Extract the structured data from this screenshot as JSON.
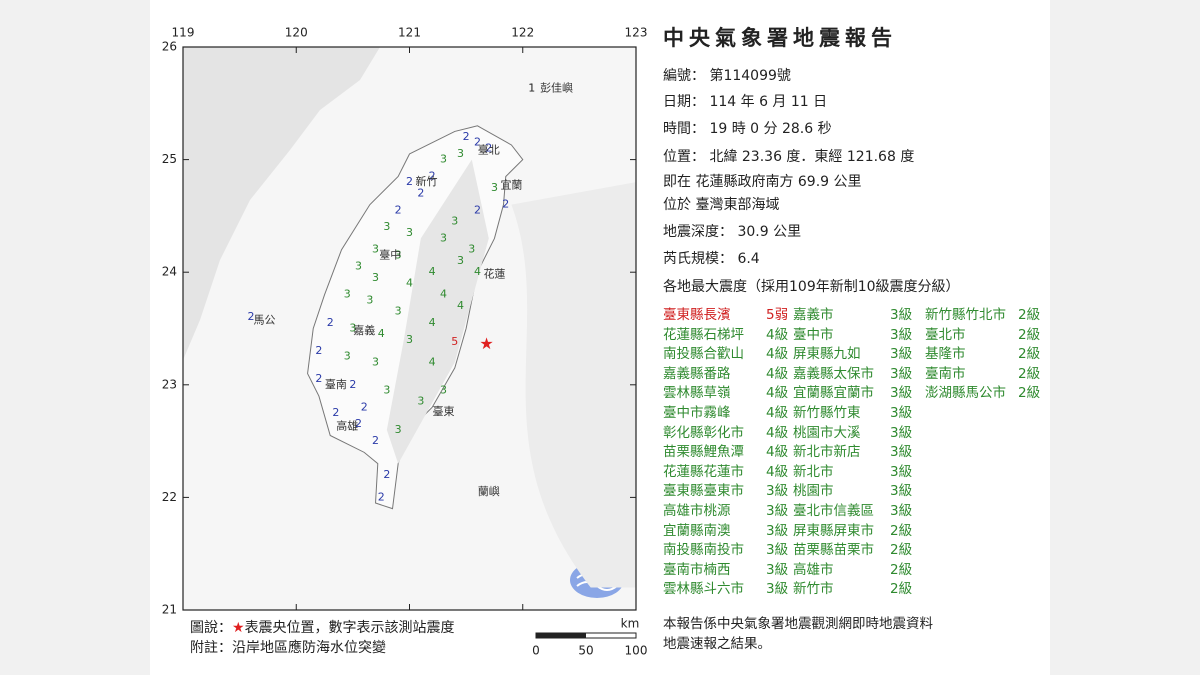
{
  "report": {
    "title": "中央氣象署地震報告",
    "fields": [
      "編號： 第114099號",
      "日期： 114 年 6 月 11 日",
      "時間： 19 時 0 分 28.6 秒",
      "位置： 北緯 23.36 度．東經 121.68 度",
      "即在 花蓮縣政府南方 69.9 公里",
      "位於 臺灣東部海域",
      "地震深度： 30.9 公里",
      "芮氏規模： 6.4"
    ],
    "intensity_header": "各地最大震度（採用109年新制10級震度分級）",
    "intensity_columns": [
      [
        [
          "臺東縣長濱",
          "5弱"
        ],
        [
          "花蓮縣石梯坪",
          "4級"
        ],
        [
          "南投縣合歡山",
          "4級"
        ],
        [
          "嘉義縣番路",
          "4級"
        ],
        [
          "雲林縣草嶺",
          "4級"
        ],
        [
          "臺中市霧峰",
          "4級"
        ],
        [
          "彰化縣彰化市",
          "4級"
        ],
        [
          "苗栗縣鯉魚潭",
          "4級"
        ],
        [
          "花蓮縣花蓮市",
          "4級"
        ],
        [
          "臺東縣臺東市",
          "3級"
        ],
        [
          "高雄市桃源",
          "3級"
        ],
        [
          "宜蘭縣南澳",
          "3級"
        ],
        [
          "南投縣南投市",
          "3級"
        ],
        [
          "臺南市楠西",
          "3級"
        ],
        [
          "雲林縣斗六市",
          "3級"
        ]
      ],
      [
        [
          "嘉義市",
          "3級"
        ],
        [
          "臺中市",
          "3級"
        ],
        [
          "屏東縣九如",
          "3級"
        ],
        [
          "嘉義縣太保市",
          "3級"
        ],
        [
          "宜蘭縣宜蘭市",
          "3級"
        ],
        [
          "新竹縣竹東",
          "3級"
        ],
        [
          "桃園市大溪",
          "3級"
        ],
        [
          "新北市新店",
          "3級"
        ],
        [
          "新北市",
          "3級"
        ],
        [
          "桃園市",
          "3級"
        ],
        [
          "臺北市信義區",
          "3級"
        ],
        [
          "屏東縣屏東市",
          "2級"
        ],
        [
          "苗栗縣苗栗市",
          "2級"
        ],
        [
          "高雄市",
          "2級"
        ],
        [
          "新竹市",
          "2級"
        ]
      ],
      [
        [
          "新竹縣竹北市",
          "2級"
        ],
        [
          "臺北市",
          "2級"
        ],
        [
          "基隆市",
          "2級"
        ],
        [
          "臺南市",
          "2級"
        ],
        [
          "澎湖縣馬公市",
          "2級"
        ]
      ]
    ],
    "footnote": [
      "本報告係中央氣象署地震觀測網即時地震資料",
      "地震速報之結果。"
    ]
  },
  "map": {
    "xlim": [
      119,
      123
    ],
    "ylim": [
      21,
      26
    ],
    "xticks": [
      119,
      120,
      121,
      122,
      123
    ],
    "yticks": [
      21,
      22,
      23,
      24,
      25,
      26
    ],
    "epicenter": {
      "lon": 121.68,
      "lat": 23.36,
      "color": "#e02020"
    },
    "intensity_colors": {
      "1": "#222222",
      "2": "#2a3aa8",
      "3": "#2f8a2f",
      "4": "#2f8a2f",
      "5": "#d02020"
    },
    "stations": [
      [
        122.08,
        25.63,
        1
      ],
      [
        121.5,
        25.2,
        2
      ],
      [
        121.6,
        25.15,
        2
      ],
      [
        121.45,
        25.05,
        3
      ],
      [
        121.7,
        25.1,
        2
      ],
      [
        121.3,
        25.0,
        3
      ],
      [
        121.2,
        24.85,
        2
      ],
      [
        121.0,
        24.8,
        2
      ],
      [
        121.1,
        24.7,
        2
      ],
      [
        121.75,
        24.75,
        3
      ],
      [
        121.85,
        24.6,
        2
      ],
      [
        121.6,
        24.55,
        2
      ],
      [
        121.4,
        24.45,
        3
      ],
      [
        120.9,
        24.55,
        2
      ],
      [
        120.8,
        24.4,
        3
      ],
      [
        121.0,
        24.35,
        3
      ],
      [
        121.3,
        24.3,
        3
      ],
      [
        121.55,
        24.2,
        3
      ],
      [
        121.6,
        24.0,
        4
      ],
      [
        121.45,
        24.1,
        3
      ],
      [
        120.7,
        24.2,
        3
      ],
      [
        120.9,
        24.15,
        3
      ],
      [
        121.2,
        24.0,
        4
      ],
      [
        120.55,
        24.05,
        3
      ],
      [
        120.7,
        23.95,
        3
      ],
      [
        121.0,
        23.9,
        4
      ],
      [
        121.3,
        23.8,
        4
      ],
      [
        121.45,
        23.7,
        4
      ],
      [
        120.45,
        23.8,
        3
      ],
      [
        120.65,
        23.75,
        3
      ],
      [
        120.9,
        23.65,
        3
      ],
      [
        121.2,
        23.55,
        4
      ],
      [
        121.4,
        23.38,
        5
      ],
      [
        120.3,
        23.55,
        2
      ],
      [
        120.5,
        23.5,
        3
      ],
      [
        120.75,
        23.45,
        4
      ],
      [
        121.0,
        23.4,
        3
      ],
      [
        120.2,
        23.3,
        2
      ],
      [
        120.45,
        23.25,
        3
      ],
      [
        120.7,
        23.2,
        3
      ],
      [
        121.2,
        23.2,
        4
      ],
      [
        120.2,
        23.05,
        2
      ],
      [
        120.5,
        23.0,
        2
      ],
      [
        120.8,
        22.95,
        3
      ],
      [
        121.1,
        22.85,
        3
      ],
      [
        121.3,
        22.95,
        3
      ],
      [
        120.35,
        22.75,
        2
      ],
      [
        120.55,
        22.65,
        2
      ],
      [
        120.7,
        22.5,
        2
      ],
      [
        120.6,
        22.8,
        2
      ],
      [
        120.9,
        22.6,
        3
      ],
      [
        120.8,
        22.2,
        2
      ],
      [
        120.75,
        22.0,
        2
      ],
      [
        119.6,
        23.6,
        2
      ]
    ],
    "places": [
      [
        "彭佳嶼",
        122.1,
        25.63
      ],
      [
        "臺北",
        121.55,
        25.08
      ],
      [
        "新竹",
        121.0,
        24.8
      ],
      [
        "宜蘭",
        121.75,
        24.77
      ],
      [
        "臺中",
        120.68,
        24.15
      ],
      [
        "花蓮",
        121.6,
        23.98
      ],
      [
        "嘉義",
        120.45,
        23.48
      ],
      [
        "馬公",
        119.57,
        23.57
      ],
      [
        "臺南",
        120.2,
        23.0
      ],
      [
        "高雄",
        120.3,
        22.63
      ],
      [
        "臺東",
        121.15,
        22.76
      ],
      [
        "蘭嶼",
        121.55,
        22.05
      ]
    ],
    "legend": {
      "prefix": "圖說：",
      "symbol": "★",
      "text": "表震央位置，數字表示該測站震度",
      "note": "附註：沿岸地區應防海水位突變"
    },
    "scale_bar": {
      "ticks": [
        0,
        50,
        100
      ],
      "unit": "km"
    }
  }
}
